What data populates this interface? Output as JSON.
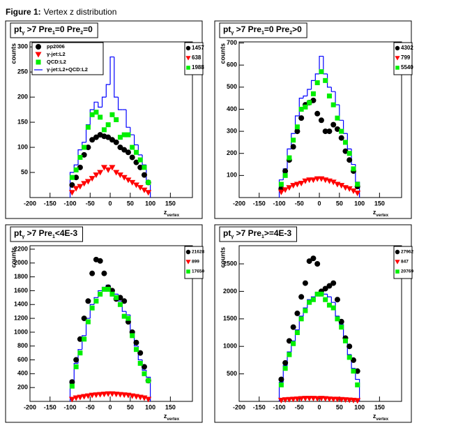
{
  "figure": {
    "label": "Figure 1:",
    "caption": "Vertex z distribution"
  },
  "chart_data": [
    {
      "type": "histogram",
      "title": [
        "pt",
        "γ",
        " >7 Pre",
        "1",
        "=0 Pre",
        "2",
        "=0"
      ],
      "y_label": "counts",
      "x_label": [
        "z",
        "vertex"
      ],
      "bins": [
        -100,
        -90,
        -80,
        -70,
        -60,
        -50,
        -40,
        -30,
        -20,
        -10,
        0,
        10,
        20,
        30,
        40,
        50,
        60,
        70,
        80,
        90,
        100
      ],
      "xlim": [
        -200,
        205
      ],
      "xticks": [
        -200,
        -150,
        -100,
        -50,
        0,
        50,
        100,
        150
      ],
      "ylim": [
        0,
        310
      ],
      "yticks": [
        50,
        100,
        150,
        200,
        250,
        300
      ],
      "series": [
        {
          "name": "pp2006",
          "style": "circle",
          "color": "#000000",
          "entries": 1457,
          "values": [
            25,
            40,
            60,
            85,
            100,
            115,
            120,
            125,
            122,
            120,
            115,
            110,
            100,
            95,
            90,
            80,
            70,
            60,
            45,
            30
          ]
        },
        {
          "name": "γ-jet:L2",
          "style": "triangle",
          "color": "#ff0000",
          "entries": 638,
          "values": [
            10,
            18,
            22,
            28,
            32,
            38,
            45,
            50,
            60,
            55,
            60,
            50,
            45,
            40,
            35,
            30,
            25,
            20,
            15,
            10
          ]
        },
        {
          "name": "QCD:L2",
          "style": "square",
          "color": "#00ee00",
          "entries": 1988,
          "values": [
            40,
            55,
            80,
            100,
            140,
            165,
            170,
            160,
            135,
            145,
            165,
            155,
            120,
            125,
            125,
            100,
            90,
            75,
            60,
            30
          ]
        },
        {
          "name": "γ-jet:L2+QCD:L2",
          "style": "step",
          "color": "#0000ff",
          "values": [
            50,
            65,
            95,
            110,
            145,
            175,
            190,
            180,
            200,
            225,
            280,
            200,
            175,
            175,
            140,
            125,
            105,
            85,
            65,
            30
          ]
        }
      ]
    },
    {
      "type": "histogram",
      "title": [
        "pt",
        "γ",
        " >7 Pre",
        "1",
        "=0 Pre",
        "2",
        ">0"
      ],
      "y_label": "counts",
      "x_label": [
        "z",
        "vertex"
      ],
      "bins": [
        -100,
        -90,
        -80,
        -70,
        -60,
        -50,
        -40,
        -30,
        -20,
        -10,
        0,
        10,
        20,
        30,
        40,
        50,
        60,
        70,
        80,
        90,
        100
      ],
      "xlim": [
        -200,
        205
      ],
      "xticks": [
        -200,
        -150,
        -100,
        -50,
        0,
        50,
        100,
        150
      ],
      "ylim": [
        0,
        705
      ],
      "yticks": [
        100,
        200,
        300,
        400,
        500,
        600,
        700
      ],
      "series": [
        {
          "style": "circle",
          "color": "#000000",
          "entries": 4302,
          "values": [
            40,
            120,
            170,
            230,
            300,
            360,
            420,
            430,
            440,
            380,
            350,
            300,
            300,
            330,
            310,
            270,
            210,
            170,
            120,
            50
          ]
        },
        {
          "style": "triangle",
          "color": "#ff0000",
          "entries": 799,
          "values": [
            25,
            35,
            45,
            55,
            60,
            65,
            75,
            80,
            80,
            85,
            85,
            80,
            75,
            70,
            60,
            55,
            45,
            40,
            30,
            20
          ]
        },
        {
          "style": "square",
          "color": "#00ee00",
          "entries": 5540,
          "values": [
            60,
            100,
            180,
            260,
            320,
            400,
            410,
            430,
            470,
            520,
            570,
            530,
            460,
            420,
            360,
            300,
            250,
            200,
            130,
            60
          ]
        },
        {
          "style": "step",
          "color": "#0000ff",
          "values": [
            80,
            130,
            220,
            290,
            370,
            450,
            460,
            490,
            530,
            560,
            640,
            560,
            500,
            480,
            420,
            350,
            290,
            220,
            150,
            70
          ]
        }
      ]
    },
    {
      "type": "histogram",
      "title": [
        "pt",
        "γ",
        " >7 Pre",
        "1",
        "<4E-3"
      ],
      "y_label": "counts",
      "x_label": [
        "z",
        "vertex"
      ],
      "bins": [
        -100,
        -90,
        -80,
        -70,
        -60,
        -50,
        -40,
        -30,
        -20,
        -10,
        0,
        10,
        20,
        30,
        40,
        50,
        60,
        70,
        80,
        90,
        100
      ],
      "xlim": [
        -200,
        205
      ],
      "xticks": [
        -200,
        -150,
        -100,
        -50,
        0,
        50,
        100,
        150
      ],
      "ylim": [
        0,
        2250
      ],
      "yticks": [
        200,
        400,
        600,
        800,
        1000,
        1200,
        1400,
        1600,
        1800,
        2000,
        2200
      ],
      "series": [
        {
          "style": "circle",
          "color": "#000000",
          "entries": 21628,
          "values": [
            280,
            600,
            900,
            1200,
            1450,
            1850,
            2050,
            2030,
            1850,
            1650,
            1600,
            1480,
            1500,
            1450,
            1150,
            1000,
            850,
            700,
            500,
            300
          ]
        },
        {
          "style": "triangle",
          "color": "#ff0000",
          "entries": 899,
          "values": [
            30,
            50,
            60,
            70,
            80,
            90,
            95,
            100,
            105,
            110,
            110,
            105,
            100,
            95,
            90,
            80,
            70,
            60,
            50,
            30
          ]
        },
        {
          "style": "square",
          "color": "#00ee00",
          "entries": 17650,
          "values": [
            220,
            500,
            700,
            900,
            1150,
            1350,
            1450,
            1550,
            1620,
            1620,
            1550,
            1500,
            1400,
            1230,
            1200,
            950,
            750,
            550,
            400,
            300
          ]
        },
        {
          "style": "step",
          "color": "#0000ff",
          "values": [
            300,
            550,
            750,
            950,
            1200,
            1400,
            1500,
            1600,
            1650,
            1680,
            1620,
            1550,
            1450,
            1300,
            1250,
            1000,
            800,
            600,
            450,
            350
          ]
        }
      ]
    },
    {
      "type": "histogram",
      "title": [
        "pt",
        "γ",
        " >7 Pre",
        "1",
        ">=4E-3"
      ],
      "y_label": "counts",
      "x_label": [
        "z",
        "vertex"
      ],
      "bins": [
        -100,
        -90,
        -80,
        -70,
        -60,
        -50,
        -40,
        -30,
        -20,
        -10,
        0,
        10,
        20,
        30,
        40,
        50,
        60,
        70,
        80,
        90,
        100
      ],
      "xlim": [
        -200,
        205
      ],
      "xticks": [
        -200,
        -150,
        -100,
        -50,
        0,
        50,
        100,
        150
      ],
      "ylim": [
        0,
        2830
      ],
      "yticks": [
        500,
        1000,
        1500,
        2000,
        2500
      ],
      "series": [
        {
          "style": "circle",
          "color": "#000000",
          "entries": 27962,
          "values": [
            400,
            700,
            1100,
            1350,
            1600,
            1900,
            2150,
            2550,
            2600,
            2500,
            2000,
            2050,
            2100,
            2150,
            1850,
            1450,
            1150,
            1000,
            750,
            550
          ]
        },
        {
          "style": "triangle",
          "color": "#ff0000",
          "entries": 847,
          "values": [
            20,
            30,
            35,
            40,
            45,
            50,
            55,
            55,
            55,
            50,
            55,
            50,
            45,
            40,
            40,
            35,
            30,
            25,
            20,
            15
          ]
        },
        {
          "style": "square",
          "color": "#00ee00",
          "entries": 20769,
          "values": [
            300,
            600,
            850,
            1050,
            1250,
            1500,
            1650,
            1800,
            1850,
            1950,
            1950,
            1850,
            1750,
            1700,
            1500,
            1350,
            1100,
            800,
            550,
            300
          ]
        },
        {
          "style": "step",
          "color": "#0000ff",
          "values": [
            350,
            650,
            900,
            1100,
            1300,
            1550,
            1700,
            1850,
            1900,
            1980,
            2000,
            1950,
            1900,
            1800,
            1550,
            1400,
            1150,
            850,
            600,
            400
          ]
        }
      ]
    }
  ]
}
